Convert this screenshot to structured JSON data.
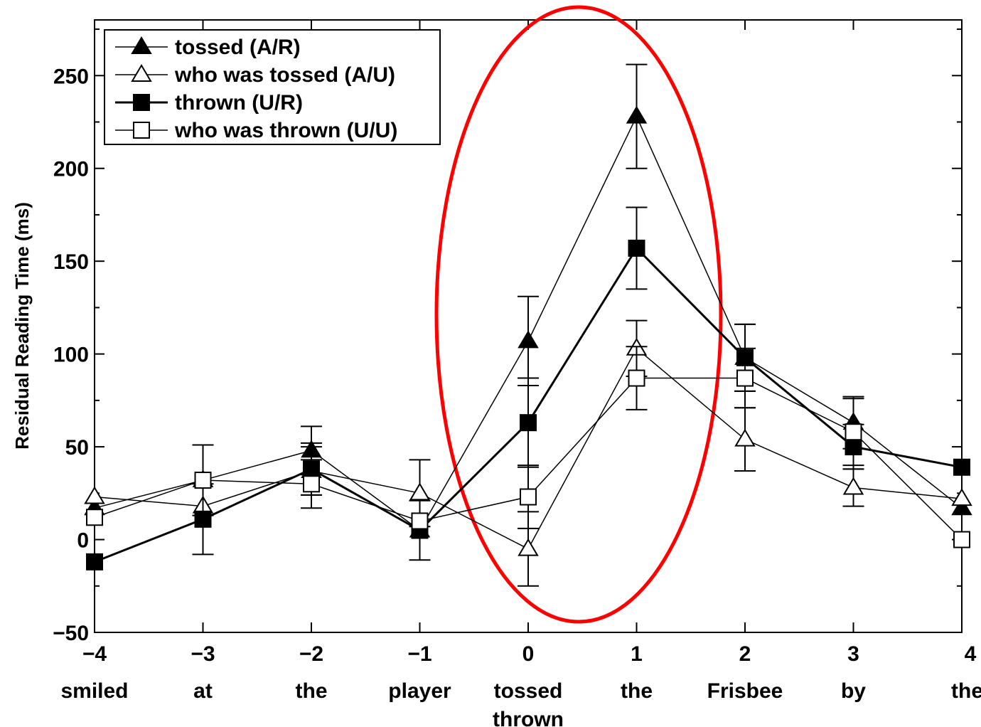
{
  "chart_data": {
    "type": "line",
    "ylabel": "Residual Reading Time (ms)",
    "xlabel": "",
    "x": [
      -4,
      -3,
      -2,
      -1,
      0,
      1,
      2,
      3,
      4
    ],
    "x_tick_labels": [
      "−4",
      "−3",
      "−2",
      "−1",
      "0",
      "1",
      "2",
      "3",
      "4"
    ],
    "words": [
      [
        "smiled"
      ],
      [
        "at"
      ],
      [
        "the"
      ],
      [
        "player"
      ],
      [
        "tossed",
        "thrown"
      ],
      [
        "the"
      ],
      [
        "Frisbee"
      ],
      [
        "by"
      ],
      [
        "the"
      ]
    ],
    "xlim": [
      -4,
      4
    ],
    "ylim": [
      -50,
      280
    ],
    "y_ticks": [
      -50,
      0,
      50,
      100,
      150,
      200,
      250
    ],
    "y_tick_labels": [
      "−50",
      "0",
      "50",
      "100",
      "150",
      "200",
      "250"
    ],
    "legend_position": "top-left",
    "highlight": {
      "shape": "ellipse",
      "color": "#ff0000",
      "around_x": [
        0,
        1
      ]
    },
    "series": [
      {
        "name": "tossed (A/R)",
        "marker": "triangle",
        "filled": true,
        "line_weight": "thin",
        "values": [
          17,
          32,
          48,
          5,
          107,
          228,
          98,
          63,
          17
        ],
        "errors": [
          null,
          null,
          13,
          null,
          24,
          28,
          18,
          14,
          null
        ]
      },
      {
        "name": "who was tossed (A/U)",
        "marker": "triangle",
        "filled": false,
        "line_weight": "thin",
        "values": [
          23,
          18,
          37,
          25,
          -5,
          103,
          54,
          28,
          22
        ],
        "errors": [
          null,
          null,
          13,
          18,
          20,
          15,
          17,
          10,
          null
        ]
      },
      {
        "name": "thrown (U/R)",
        "marker": "square",
        "filled": true,
        "line_weight": "thick",
        "values": [
          -12,
          11,
          38,
          5,
          63,
          157,
          98,
          50,
          39
        ],
        "errors": [
          null,
          19,
          14,
          16,
          24,
          22,
          18,
          12,
          null
        ]
      },
      {
        "name": "who was thrown (U/U)",
        "marker": "square",
        "filled": false,
        "line_weight": "thin",
        "values": [
          12,
          32,
          30,
          10,
          23,
          87,
          87,
          58,
          0
        ],
        "errors": [
          null,
          19,
          13,
          null,
          17,
          17,
          16,
          18,
          null
        ]
      }
    ]
  }
}
